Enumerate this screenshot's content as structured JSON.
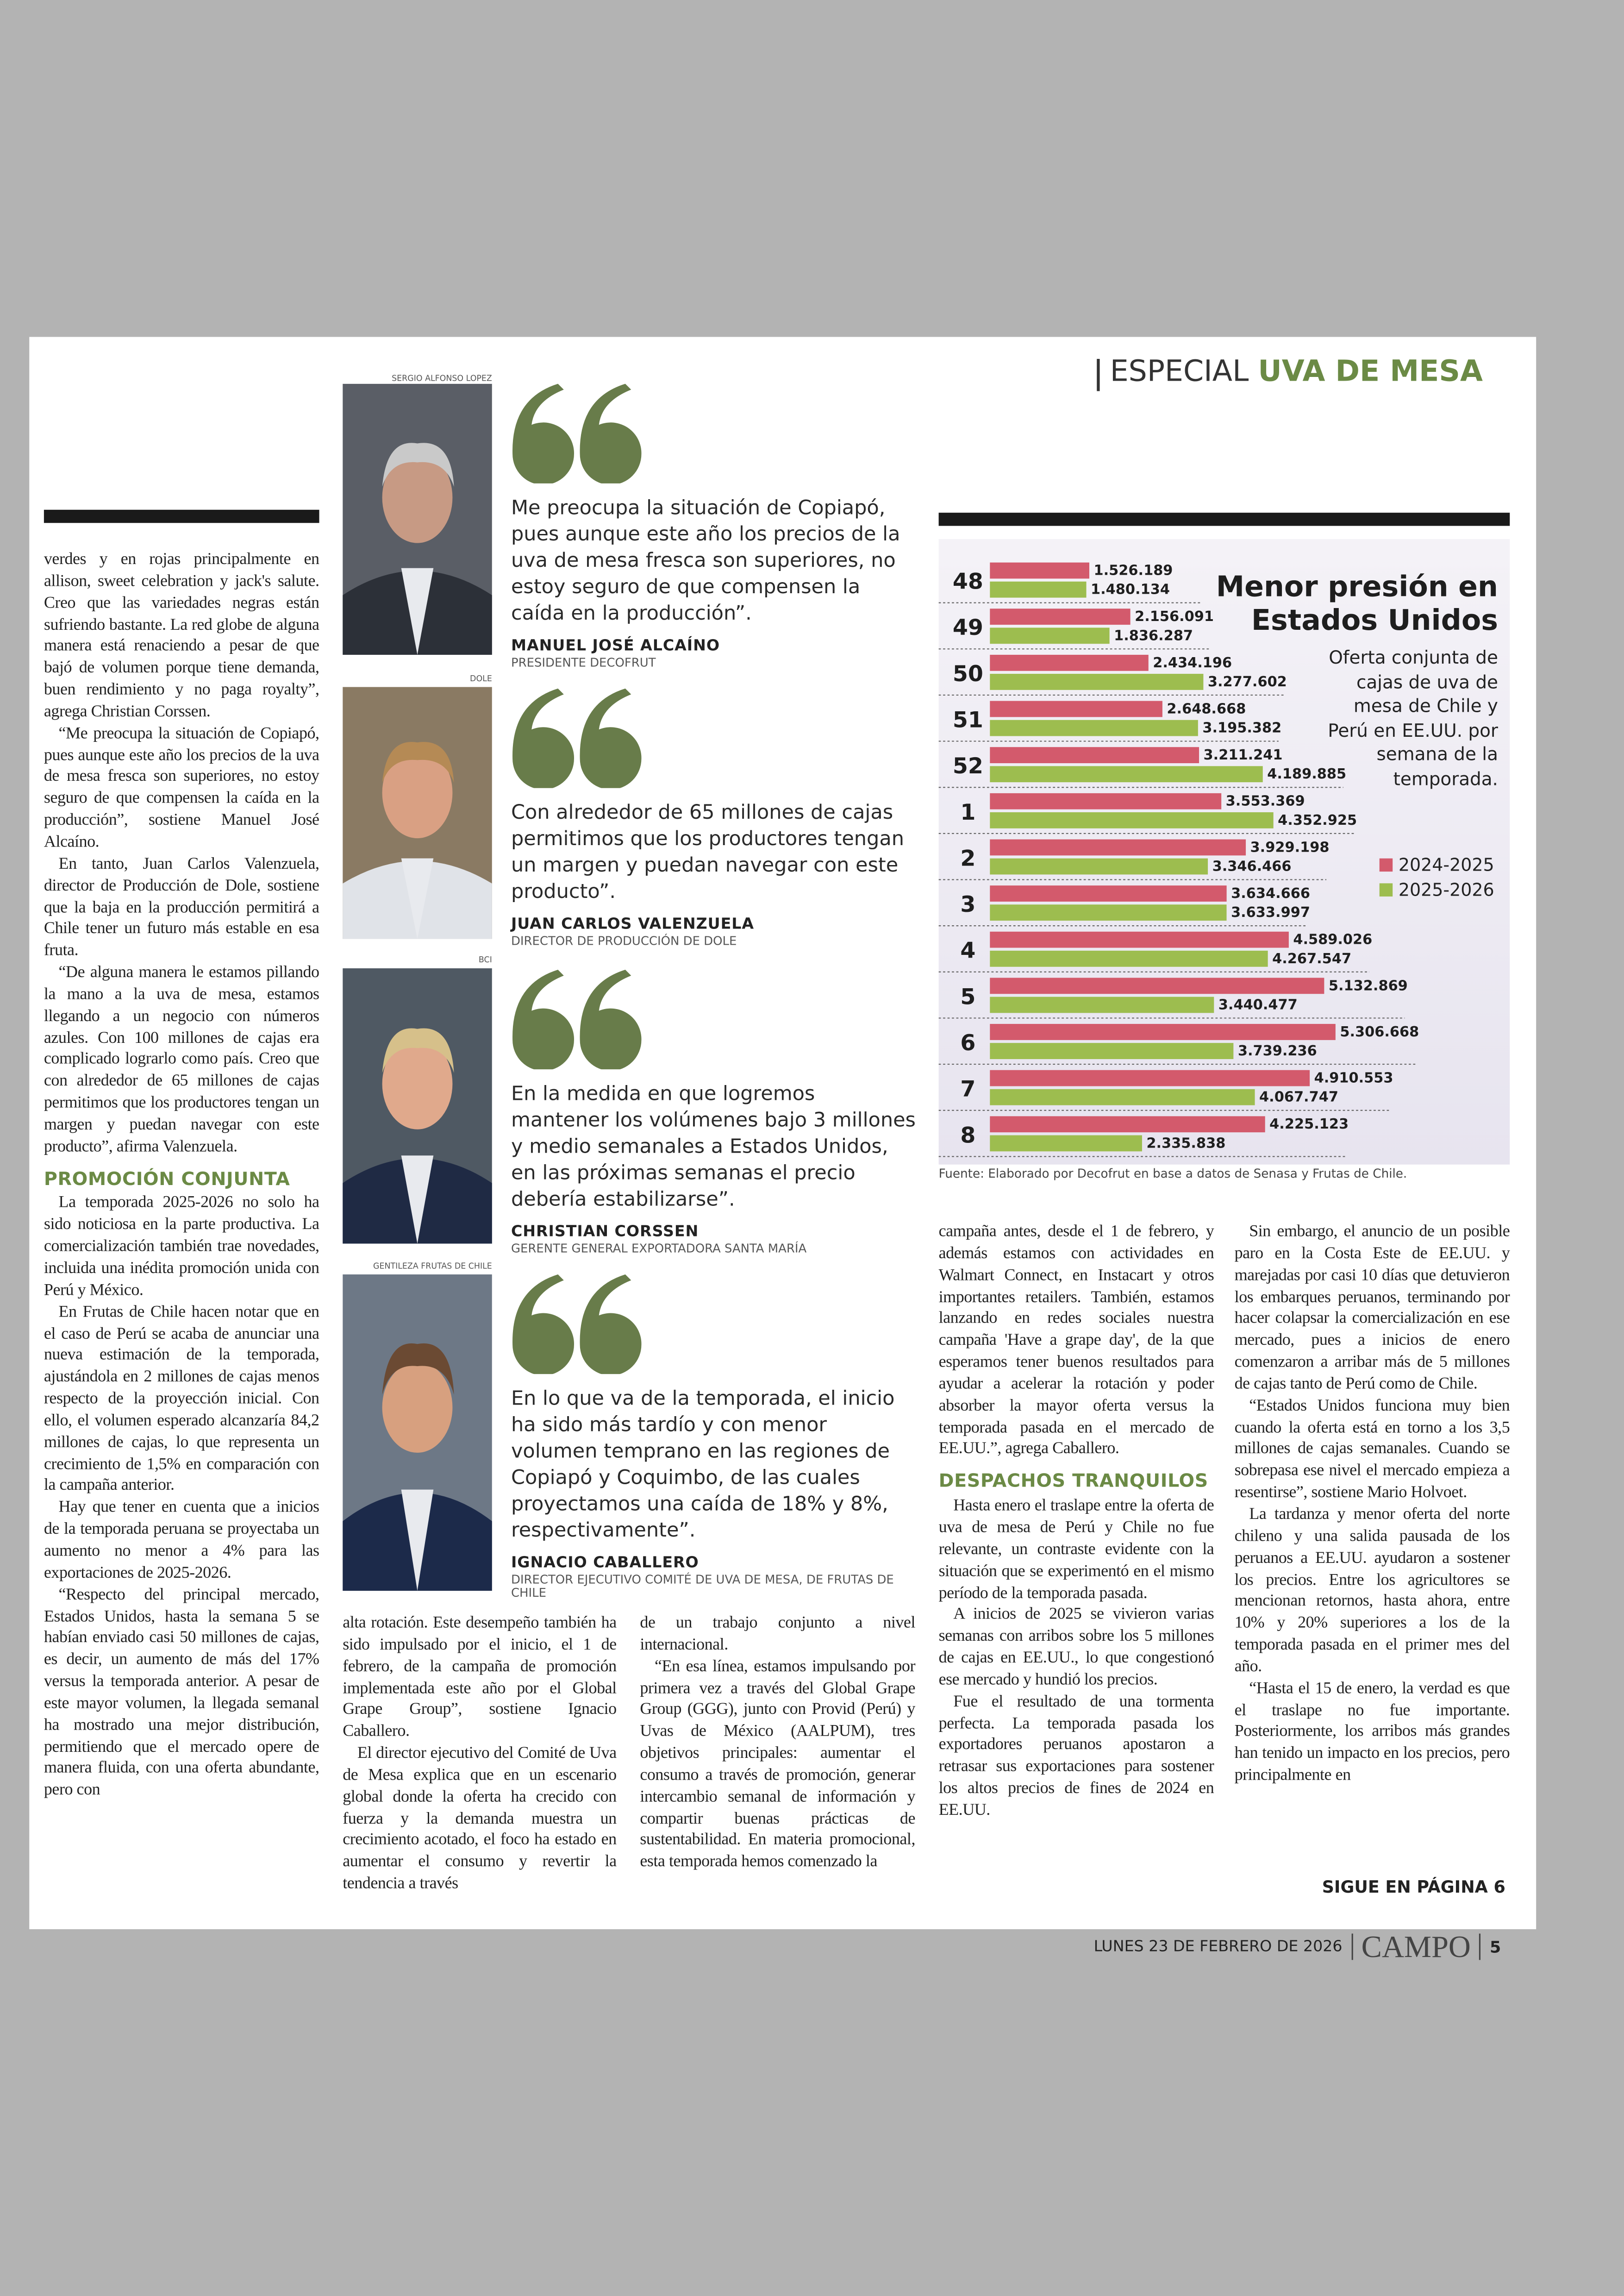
{
  "header": {
    "section": "ESPECIAL",
    "topic": "UVA DE MESA"
  },
  "columns": [
    {
      "blocks": [
        {
          "text": "verdes y en rojas principalmente en allison, sweet celebration y jack's salute. Creo que las variedades negras están sufriendo bastante. La red globe de alguna manera está renaciendo a pesar de que bajó de volumen porque tiene demanda, buen rendimiento y no paga royalty”, agrega Christian Corssen."
        },
        {
          "text": "“Me preocupa la situación de Copiapó, pues aunque este año los precios de la uva de mesa fresca son superiores, no estoy seguro de que compensen la caída en la producción”, sostiene Manuel José Alcaíno."
        },
        {
          "text": "En tanto, Juan Carlos Valenzuela, director de Producción de Dole, sostiene que la baja en la producción permitirá a Chile tener un futuro más estable en esa fruta."
        },
        {
          "text": "“De alguna manera le estamos pillando la mano a la uva de mesa, estamos llegando a un negocio con números azules. Con 100 millones de cajas era complicado lograrlo como país. Creo que con alrededor de 65 millones de cajas permitimos que los productores tengan un margen y puedan navegar con este producto”, afirma Valenzuela."
        },
        {
          "heading": "PROMOCIÓN CONJUNTA"
        },
        {
          "text": "La temporada 2025-2026 no solo ha sido noticiosa en la parte productiva. La comercialización también trae novedades, incluida una inédita promoción unida con Perú y México."
        },
        {
          "text": "En Frutas de Chile hacen notar que en el caso de Perú se acaba de anunciar una nueva estimación de la temporada, ajustándola en 2 millones de cajas menos respecto de la proyección inicial. Con ello, el volumen esperado alcanzaría 84,2 millones de cajas, lo que representa un crecimiento de 1,5% en comparación con la campaña anterior."
        },
        {
          "text": "Hay que tener en cuenta que a inicios de la temporada peruana se proyectaba un aumento no menor a 4% para las exportaciones de 2025-2026."
        },
        {
          "text": "“Respecto del principal mercado, Estados Unidos, hasta la semana 5 se habían enviado casi 50 millones de cajas, es decir, un aumento de más del 17% versus la temporada anterior. A pesar de este mayor volumen, la llegada semanal ha mostrado una mejor distribución, permitiendo que el mercado opere de manera fluida, con una oferta abundante, pero con"
        }
      ]
    },
    {
      "blocks": [
        {
          "text": "alta rotación. Este desempeño también ha sido impulsado por el inicio, el 1 de febrero, de la campaña de promoción implementada este año por el Global Grape Group”, sostiene Ignacio Caballero."
        },
        {
          "text": "El director ejecutivo del Comité de Uva de Mesa explica que en un escenario global donde la oferta ha crecido con fuerza y la demanda muestra un crecimiento acotado, el foco ha estado en aumentar el consumo y revertir la tendencia a través"
        }
      ]
    },
    {
      "blocks": [
        {
          "text": "de un trabajo conjunto a nivel internacional."
        },
        {
          "text": "“En esa línea, estamos impulsando por primera vez a través del Global Grape Group (GGG), junto con Provid (Perú) y Uvas de México (AALPUM), tres objetivos principales: aumentar el consumo a través de promoción, generar intercambio semanal de información y compartir buenas prácticas de sustentabilidad. En materia promocional, esta temporada hemos comenzado la"
        }
      ]
    },
    {
      "blocks": [
        {
          "text": "campaña antes, desde el 1 de febrero, y además estamos con actividades en Walmart Connect, en Instacart y otros importantes retailers. También, estamos lanzando en redes sociales nuestra campaña 'Have a grape day', de la que esperamos tener buenos resultados para ayudar a acelerar la rotación y poder absorber la mayor oferta versus la temporada pasada en el mercado de EE.UU.”, agrega Caballero."
        },
        {
          "heading": "DESPACHOS TRANQUILOS"
        },
        {
          "text": "Hasta enero el traslape entre la oferta de uva de mesa de Perú y Chile no fue relevante, un contraste evidente con la situación que se experimentó en el mismo período de la temporada pasada."
        },
        {
          "text": "A inicios de 2025 se vivieron varias semanas con arribos sobre los 5 millones de cajas en EE.UU., lo que congestionó ese mercado y hundió los precios."
        },
        {
          "text": "Fue el resultado de una tormenta perfecta. La temporada pasada los exportadores peruanos apostaron a retrasar sus exportaciones para sostener los altos precios de fines de 2024 en EE.UU."
        }
      ]
    },
    {
      "blocks": [
        {
          "text": "Sin embargo, el anuncio de un posible paro en la Costa Este de EE.UU. y marejadas por casi 10 días que detuvieron los embarques peruanos, terminando por hacer colapsar la comercialización en ese mercado, pues a inicios de enero comenzaron a arribar más de 5 millones de cajas tanto de Perú como de Chile."
        },
        {
          "text": "“Estados Unidos funciona muy bien cuando la oferta está en torno a los 3,5 millones de cajas semanales. Cuando se sobrepasa ese nivel el mercado empieza a resentirse”, sostiene Mario Holvoet."
        },
        {
          "text": "La tardanza y menor oferta del norte chileno y una salida pausada de los peruanos a EE.UU. ayudaron a sostener los precios. Entre los agricultores se mencionan retornos, hasta ahora, entre 10% y 20% superiores a los de la temporada pasada en el primer mes del año."
        },
        {
          "text": "“Hasta el 15 de enero, la verdad es que el traslape no fue importante. Posteriormente, los arribos más grandes han tenido un impacto en los precios, pero principalmente en"
        }
      ]
    }
  ],
  "quotes": [
    {
      "credit": "SERGIO ALFONSO LOPEZ",
      "text": "Me preocupa la situación de Copiapó, pues aunque este año los precios de la uva de mesa fresca son superiores, no estoy seguro de que compensen la caída en la producción”.",
      "name": "MANUEL JOSÉ ALCAÍNO",
      "role": "PRESIDENTE DECOFRUT"
    },
    {
      "credit": "DOLE",
      "text": "Con alrededor de 65 millones de cajas permitimos que los productores tengan un margen y puedan navegar con este producto”.",
      "name": "JUAN CARLOS VALENZUELA",
      "role": "DIRECTOR DE PRODUCCIÓN DE DOLE"
    },
    {
      "credit": "BCI",
      "text": "En la medida en que logremos mantener los volúmenes bajo 3 millones y medio semanales a Estados Unidos, en las próximas semanas el precio debería estabilizarse”.",
      "name": "CHRISTIAN CORSSEN",
      "role": "GERENTE GENERAL EXPORTADORA SANTA MARÍA"
    },
    {
      "credit": "GENTILEZA FRUTAS DE CHILE",
      "text": "En lo que va de la temporada, el inicio ha sido más tardío y con menor volumen temprano en las regiones de Copiapó y Coquimbo, de las cuales proyectamos una caída de 18% y 8%, respectivamente”.",
      "name": "IGNACIO CABALLERO",
      "role": "DIRECTOR EJECUTIVO COMITÉ DE UVA DE MESA, DE FRUTAS DE CHILE"
    }
  ],
  "chart_data": {
    "type": "bar",
    "orientation": "horizontal",
    "title": "Menor presión en Estados Unidos",
    "subtitle": "Oferta conjunta de cajas de uva de mesa de Chile y Perú en EE.UU. por semana de la temporada.",
    "source": "Fuente: Elaborado por Decofrut en base a datos de Senasa y Frutas de Chile.",
    "categories": [
      "48",
      "49",
      "50",
      "51",
      "52",
      "1",
      "2",
      "3",
      "4",
      "5",
      "6",
      "7",
      "8"
    ],
    "series": [
      {
        "name": "2024-2025",
        "color": "#d35a6c",
        "values": [
          1526189,
          2156091,
          2434196,
          2648668,
          3211241,
          3553369,
          3929198,
          3634666,
          4589026,
          5132869,
          5306668,
          4910553,
          4225123
        ],
        "value_labels": [
          "1.526.189",
          "2.156.091",
          "2.434.196",
          "2.648.668",
          "3.211.241",
          "3.553.369",
          "3.929.198",
          "3.634.666",
          "4.589.026",
          "5.132.869",
          "5.306.668",
          "4.910.553",
          "4.225.123"
        ]
      },
      {
        "name": "2025-2026",
        "color": "#9dbd4f",
        "values": [
          1480134,
          1836287,
          3277602,
          3195382,
          4189885,
          4352925,
          3346466,
          3633997,
          4267547,
          3440477,
          3739236,
          4067747,
          2335838
        ],
        "value_labels": [
          "1.480.134",
          "1.836.287",
          "3.277.602",
          "3.195.382",
          "4.189.885",
          "4.352.925",
          "3.346.466",
          "3.633.997",
          "4.267.547",
          "3.440.477",
          "3.739.236",
          "4.067.747",
          "2.335.838"
        ]
      }
    ]
  },
  "continued": "SIGUE EN PÁGINA 6",
  "footer": {
    "date": "LUNES 23 DE FEBRERO DE 2026",
    "section": "CAMPO",
    "page": "5"
  }
}
